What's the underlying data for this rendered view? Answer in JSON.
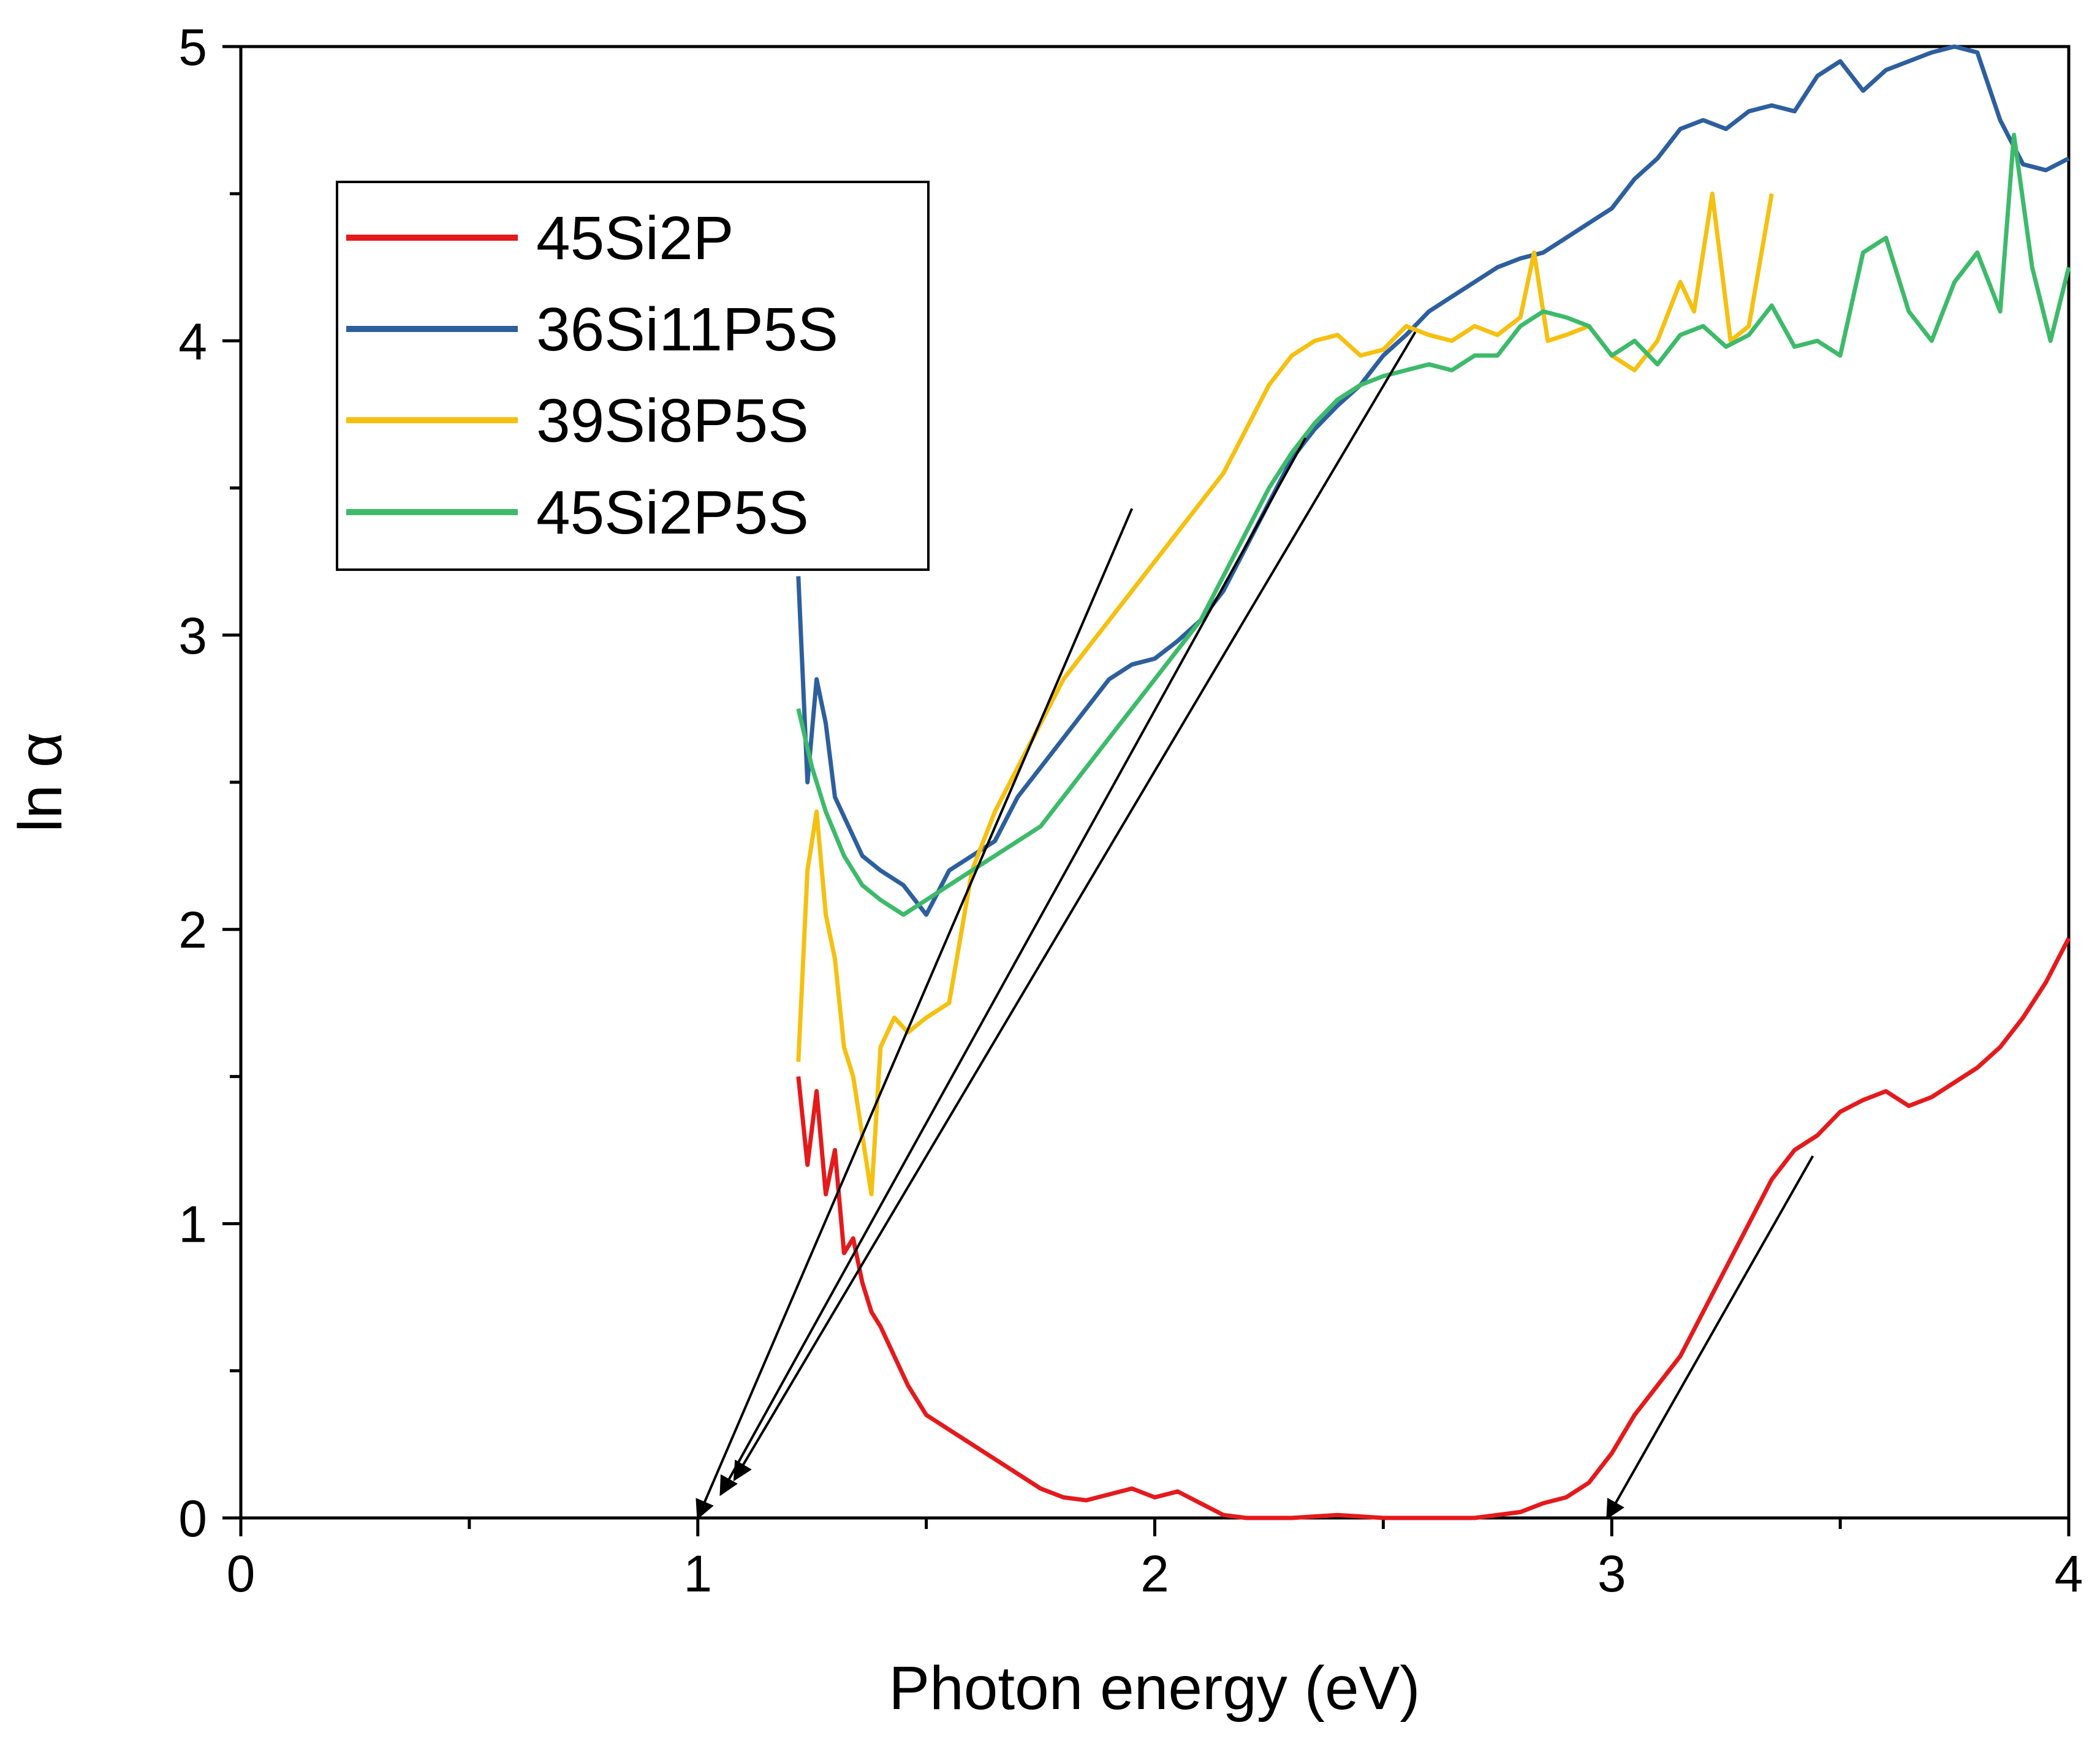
{
  "chart_data": {
    "type": "line",
    "title": "",
    "xlabel": "Photon energy (eV)",
    "ylabel": "ln α",
    "xlim": [
      0,
      4
    ],
    "ylim": [
      0,
      5
    ],
    "xticks": [
      0,
      1,
      2,
      3,
      4
    ],
    "yticks": [
      0,
      1,
      2,
      3,
      4,
      5
    ],
    "legend_position": "top-left",
    "series": [
      {
        "name": "45Si2P",
        "color": "#e41a1c",
        "x": [
          1.22,
          1.24,
          1.26,
          1.28,
          1.3,
          1.32,
          1.34,
          1.36,
          1.38,
          1.4,
          1.43,
          1.46,
          1.5,
          1.55,
          1.6,
          1.65,
          1.7,
          1.75,
          1.8,
          1.85,
          1.9,
          1.95,
          2.0,
          2.05,
          2.1,
          2.15,
          2.2,
          2.3,
          2.4,
          2.5,
          2.6,
          2.7,
          2.8,
          2.85,
          2.9,
          2.95,
          3.0,
          3.05,
          3.1,
          3.15,
          3.2,
          3.25,
          3.3,
          3.35,
          3.4,
          3.45,
          3.5,
          3.55,
          3.6,
          3.65,
          3.7,
          3.75,
          3.8,
          3.85,
          3.9,
          3.95,
          4.0
        ],
        "y": [
          1.5,
          1.2,
          1.45,
          1.1,
          1.25,
          0.9,
          0.95,
          0.8,
          0.7,
          0.65,
          0.55,
          0.45,
          0.35,
          0.3,
          0.25,
          0.2,
          0.15,
          0.1,
          0.07,
          0.06,
          0.08,
          0.1,
          0.07,
          0.09,
          0.05,
          0.01,
          0.0,
          0.0,
          0.01,
          0.0,
          0.0,
          0.0,
          0.02,
          0.05,
          0.07,
          0.12,
          0.22,
          0.35,
          0.45,
          0.55,
          0.7,
          0.85,
          1.0,
          1.15,
          1.25,
          1.3,
          1.38,
          1.42,
          1.45,
          1.4,
          1.43,
          1.48,
          1.53,
          1.6,
          1.7,
          1.82,
          1.97
        ]
      },
      {
        "name": "36Si11P5S",
        "color": "#2d5f9e",
        "x": [
          1.22,
          1.24,
          1.26,
          1.28,
          1.3,
          1.33,
          1.36,
          1.4,
          1.45,
          1.5,
          1.55,
          1.6,
          1.65,
          1.7,
          1.75,
          1.8,
          1.85,
          1.9,
          1.95,
          2.0,
          2.05,
          2.1,
          2.15,
          2.2,
          2.25,
          2.3,
          2.35,
          2.4,
          2.45,
          2.5,
          2.55,
          2.6,
          2.65,
          2.7,
          2.75,
          2.8,
          2.85,
          2.9,
          2.95,
          3.0,
          3.05,
          3.1,
          3.15,
          3.2,
          3.25,
          3.3,
          3.35,
          3.4,
          3.45,
          3.5,
          3.55,
          3.6,
          3.65,
          3.7,
          3.75,
          3.8,
          3.85,
          3.9,
          3.95,
          4.0
        ],
        "y": [
          3.2,
          2.5,
          2.85,
          2.7,
          2.45,
          2.35,
          2.25,
          2.2,
          2.15,
          2.05,
          2.2,
          2.25,
          2.3,
          2.45,
          2.55,
          2.65,
          2.75,
          2.85,
          2.9,
          2.92,
          2.98,
          3.05,
          3.15,
          3.3,
          3.45,
          3.6,
          3.7,
          3.78,
          3.85,
          3.95,
          4.02,
          4.1,
          4.15,
          4.2,
          4.25,
          4.28,
          4.3,
          4.35,
          4.4,
          4.45,
          4.55,
          4.62,
          4.72,
          4.75,
          4.72,
          4.78,
          4.8,
          4.78,
          4.9,
          4.95,
          4.85,
          4.92,
          4.95,
          4.98,
          5.0,
          4.98,
          4.75,
          4.6,
          4.58,
          4.62
        ]
      },
      {
        "name": "39Si8P5S",
        "color": "#f5c010",
        "x": [
          1.22,
          1.24,
          1.26,
          1.28,
          1.3,
          1.32,
          1.34,
          1.36,
          1.38,
          1.4,
          1.43,
          1.46,
          1.5,
          1.55,
          1.6,
          1.65,
          1.7,
          1.75,
          1.8,
          1.85,
          1.9,
          1.95,
          2.0,
          2.05,
          2.1,
          2.15,
          2.2,
          2.25,
          2.3,
          2.35,
          2.4,
          2.45,
          2.5,
          2.55,
          2.6,
          2.65,
          2.7,
          2.75,
          2.8,
          2.83,
          2.86,
          2.9,
          2.95,
          3.0,
          3.05,
          3.1,
          3.15,
          3.18,
          3.22,
          3.26,
          3.3,
          3.35
        ],
        "y": [
          1.55,
          2.2,
          2.4,
          2.05,
          1.9,
          1.6,
          1.5,
          1.3,
          1.1,
          1.6,
          1.7,
          1.65,
          1.7,
          1.75,
          2.2,
          2.4,
          2.55,
          2.7,
          2.85,
          2.95,
          3.05,
          3.15,
          3.25,
          3.35,
          3.45,
          3.55,
          3.7,
          3.85,
          3.95,
          4.0,
          4.02,
          3.95,
          3.97,
          4.05,
          4.02,
          4.0,
          4.05,
          4.02,
          4.08,
          4.3,
          4.0,
          4.02,
          4.05,
          3.95,
          3.9,
          4.0,
          4.2,
          4.1,
          4.5,
          4.0,
          4.05,
          4.5
        ]
      },
      {
        "name": "45Si2P5S",
        "color": "#3dba6a",
        "x": [
          1.22,
          1.25,
          1.28,
          1.32,
          1.36,
          1.4,
          1.45,
          1.5,
          1.55,
          1.6,
          1.65,
          1.7,
          1.75,
          1.8,
          1.85,
          1.9,
          1.95,
          2.0,
          2.05,
          2.1,
          2.15,
          2.2,
          2.25,
          2.3,
          2.35,
          2.4,
          2.45,
          2.5,
          2.55,
          2.6,
          2.65,
          2.7,
          2.75,
          2.8,
          2.85,
          2.9,
          2.95,
          3.0,
          3.05,
          3.1,
          3.15,
          3.2,
          3.25,
          3.3,
          3.35,
          3.4,
          3.45,
          3.5,
          3.55,
          3.6,
          3.65,
          3.7,
          3.75,
          3.8,
          3.85,
          3.88,
          3.92,
          3.96,
          4.0
        ],
        "y": [
          2.75,
          2.55,
          2.4,
          2.25,
          2.15,
          2.1,
          2.05,
          2.1,
          2.15,
          2.2,
          2.25,
          2.3,
          2.35,
          2.45,
          2.55,
          2.65,
          2.75,
          2.85,
          2.95,
          3.05,
          3.2,
          3.35,
          3.5,
          3.62,
          3.72,
          3.8,
          3.85,
          3.88,
          3.9,
          3.92,
          3.9,
          3.95,
          3.95,
          4.05,
          4.1,
          4.08,
          4.05,
          3.95,
          4.0,
          3.92,
          4.02,
          4.05,
          3.98,
          4.02,
          4.12,
          3.98,
          4.0,
          3.95,
          4.3,
          4.35,
          4.1,
          4.0,
          4.2,
          4.3,
          4.1,
          4.7,
          4.25,
          4.0,
          4.25
        ]
      }
    ],
    "annotations": [
      {
        "type": "arrow",
        "from": [
          1.95,
          3.43
        ],
        "to": [
          1.0,
          0.0
        ]
      },
      {
        "type": "arrow",
        "from": [
          2.33,
          3.67
        ],
        "to": [
          1.05,
          0.08
        ]
      },
      {
        "type": "arrow",
        "from": [
          2.57,
          4.03
        ],
        "to": [
          1.08,
          0.13
        ]
      },
      {
        "type": "arrow",
        "from": [
          3.44,
          1.23
        ],
        "to": [
          2.99,
          0.0
        ]
      }
    ]
  }
}
